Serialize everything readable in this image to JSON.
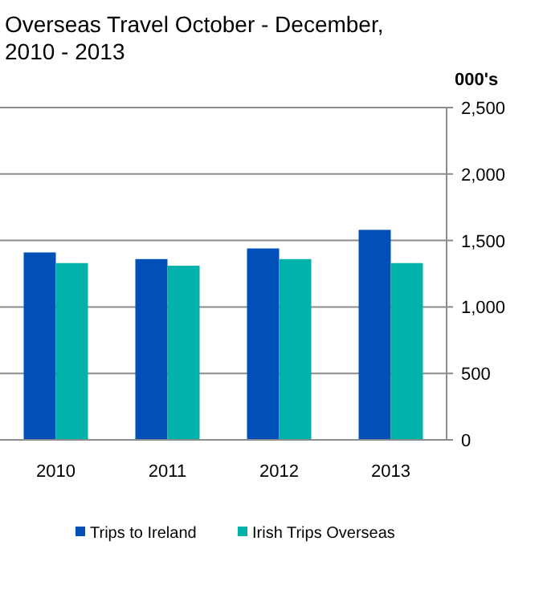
{
  "chart_data": {
    "type": "bar",
    "title": "Overseas Travel October - December, 2010 - 2013",
    "ylabel": "000's",
    "categories": [
      "2010",
      "2011",
      "2012",
      "2013"
    ],
    "series": [
      {
        "name": "Trips to Ireland",
        "color": "#0050b8",
        "values": [
          1410,
          1360,
          1440,
          1580
        ]
      },
      {
        "name": "Irish Trips Overseas",
        "color": "#00b2aa",
        "values": [
          1330,
          1310,
          1360,
          1330
        ]
      }
    ],
    "ylim": [
      0,
      2500
    ],
    "yticks": [
      0,
      {
        "value": 500,
        "label": "500"
      },
      {
        "value": 1000,
        "label": "1,000"
      },
      {
        "value": 1500,
        "label": "1,500"
      },
      {
        "value": 2000,
        "label": "2,000"
      },
      {
        "value": 2500,
        "label": "2,500"
      }
    ],
    "grid": "y",
    "legend": "bottom"
  }
}
